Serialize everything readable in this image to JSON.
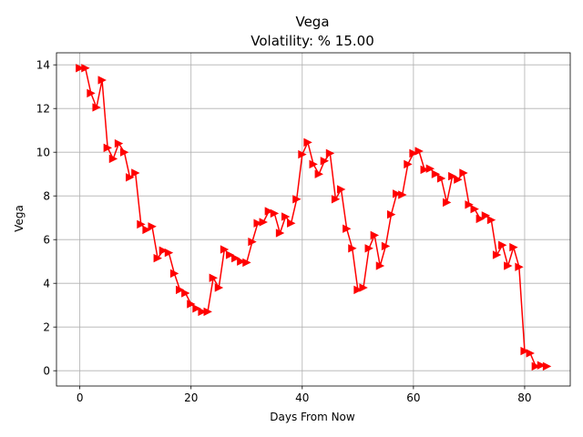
{
  "chart_data": {
    "type": "line",
    "title": "Vega",
    "subtitle": "Volatility: % 15.00",
    "xlabel": "Days From Now",
    "ylabel": "Vega",
    "xlim": [
      -4.2,
      88.2
    ],
    "ylim": [
      -0.7,
      14.55
    ],
    "xticks": [
      0,
      20,
      40,
      60,
      80
    ],
    "yticks": [
      0,
      2,
      4,
      6,
      8,
      10,
      12,
      14
    ],
    "grid": true,
    "marker": "triangle-right",
    "color": "#ff0000",
    "series": [
      {
        "x": [
          0,
          1,
          2,
          3,
          4,
          5,
          6,
          7,
          8,
          9,
          10,
          11,
          12,
          13,
          14,
          15,
          16,
          17,
          18,
          19,
          20,
          21,
          22,
          23,
          24,
          25,
          26,
          27,
          28,
          29,
          30,
          31,
          32,
          33,
          34,
          35,
          36,
          37,
          38,
          39,
          40,
          41,
          42,
          43,
          44,
          45,
          46,
          47,
          48,
          49,
          50,
          51,
          52,
          53,
          54,
          55,
          56,
          57,
          58,
          59,
          60,
          61,
          62,
          63,
          64,
          65,
          66,
          67,
          68,
          69,
          70,
          71,
          72,
          73,
          74,
          75,
          76,
          77,
          78,
          79,
          80,
          81,
          82,
          83,
          84
        ],
        "values": [
          13.85,
          13.85,
          12.7,
          12.05,
          13.3,
          10.2,
          9.7,
          10.4,
          10.0,
          8.85,
          9.05,
          6.7,
          6.45,
          6.6,
          5.15,
          5.5,
          5.4,
          4.45,
          3.7,
          3.55,
          3.05,
          2.85,
          2.7,
          2.7,
          4.25,
          3.8,
          5.55,
          5.3,
          5.15,
          5.0,
          4.95,
          5.9,
          6.75,
          6.8,
          7.3,
          7.2,
          6.3,
          7.05,
          6.75,
          7.85,
          9.9,
          10.45,
          9.45,
          9.0,
          9.6,
          9.95,
          7.85,
          8.3,
          6.5,
          5.6,
          3.7,
          3.8,
          5.6,
          6.2,
          4.8,
          5.7,
          7.15,
          8.1,
          8.05,
          9.45,
          9.95,
          10.05,
          9.2,
          9.25,
          9.0,
          8.8,
          7.7,
          8.9,
          8.75,
          9.05,
          7.6,
          7.4,
          6.95,
          7.1,
          6.9,
          5.3,
          5.75,
          4.8,
          5.65,
          4.75,
          0.9,
          0.8,
          0.2,
          0.25,
          0.2
        ]
      }
    ]
  }
}
